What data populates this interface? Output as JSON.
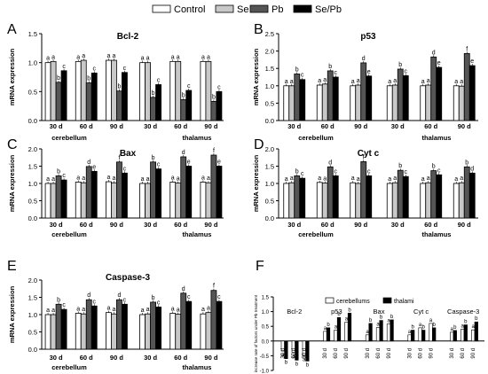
{
  "legend": [
    {
      "label": "Control",
      "color": "#ffffff"
    },
    {
      "label": "Se",
      "color": "#c8c8c8"
    },
    {
      "label": "Pb",
      "color": "#555555"
    },
    {
      "label": "Se/Pb",
      "color": "#000000"
    }
  ],
  "chart_data": [
    {
      "panel": "A",
      "type": "bar",
      "title": "Bcl-2",
      "ylabel": "mRNA expression",
      "ylim": [
        0,
        1.5
      ],
      "yticks": [
        "0.0",
        "0.5",
        "1.0",
        "1.5"
      ],
      "categories": [
        "30 d",
        "60 d",
        "90 d",
        "30 d",
        "60 d",
        "90 d"
      ],
      "groups": [
        "cerebellum",
        "thalamus"
      ],
      "series": [
        {
          "name": "Control",
          "values": [
            1.0,
            1.02,
            1.04,
            1.0,
            1.02,
            1.02
          ]
        },
        {
          "name": "Se",
          "values": [
            1.02,
            1.04,
            1.04,
            1.0,
            1.02,
            1.02
          ]
        },
        {
          "name": "Pb",
          "values": [
            0.66,
            0.65,
            0.51,
            0.4,
            0.36,
            0.33
          ]
        },
        {
          "name": "Se/Pb",
          "values": [
            0.86,
            0.82,
            0.83,
            0.62,
            0.52,
            0.5
          ]
        }
      ],
      "letters": [
        [
          "a",
          "a",
          "b",
          "c"
        ],
        [
          "a",
          "a",
          "b",
          "c"
        ],
        [
          "a",
          "a",
          "b",
          "c"
        ],
        [
          "a",
          "a",
          "b",
          "c"
        ],
        [
          "a",
          "a",
          "b",
          "c"
        ],
        [
          "a",
          "a",
          "b",
          "c"
        ]
      ]
    },
    {
      "panel": "B",
      "type": "bar",
      "title": "p53",
      "ylabel": "mRNA expression",
      "ylim": [
        0,
        2.5
      ],
      "yticks": [
        "0.0",
        "0.5",
        "1.0",
        "1.5",
        "2.0",
        "2.5"
      ],
      "categories": [
        "30 d",
        "60 d",
        "90 d",
        "30 d",
        "60 d",
        "90 d"
      ],
      "groups": [
        "cerebellum",
        "thalamus"
      ],
      "series": [
        {
          "name": "Control",
          "values": [
            1.0,
            1.02,
            1.0,
            1.0,
            1.0,
            1.0
          ]
        },
        {
          "name": "Se",
          "values": [
            1.0,
            1.05,
            1.02,
            1.02,
            1.02,
            0.99
          ]
        },
        {
          "name": "Pb",
          "values": [
            1.34,
            1.43,
            1.66,
            1.48,
            1.83,
            1.93
          ]
        },
        {
          "name": "Se/Pb",
          "values": [
            1.18,
            1.25,
            1.28,
            1.29,
            1.53,
            1.58
          ]
        }
      ],
      "letters": [
        [
          "a",
          "a",
          "b",
          "c"
        ],
        [
          "a",
          "a",
          "b",
          "c"
        ],
        [
          "a",
          "a",
          "d",
          "e"
        ],
        [
          "a",
          "a",
          "b",
          "c"
        ],
        [
          "a",
          "a",
          "d",
          "e"
        ],
        [
          "a",
          "a",
          "f",
          "e"
        ]
      ]
    },
    {
      "panel": "C",
      "type": "bar",
      "title": "Bax",
      "ylabel": "mRNA expression",
      "ylim": [
        0,
        2.0
      ],
      "yticks": [
        "0.0",
        "0.5",
        "1.0",
        "1.5",
        "2.0"
      ],
      "categories": [
        "30 d",
        "60 d",
        "90 d",
        "30 d",
        "60 d",
        "90 d"
      ],
      "groups": [
        "cerebellum",
        "thalamus"
      ],
      "series": [
        {
          "name": "Control",
          "values": [
            1.0,
            1.04,
            1.05,
            1.0,
            1.04,
            1.04
          ]
        },
        {
          "name": "Se",
          "values": [
            1.0,
            1.02,
            1.02,
            1.0,
            1.01,
            1.02
          ]
        },
        {
          "name": "Pb",
          "values": [
            1.22,
            1.49,
            1.62,
            1.62,
            1.77,
            1.82
          ]
        },
        {
          "name": "Se/Pb",
          "values": [
            1.1,
            1.35,
            1.3,
            1.42,
            1.5,
            1.5
          ]
        }
      ],
      "letters": [
        [
          "a",
          "a",
          "b",
          "c"
        ],
        [
          "a",
          "a",
          "d",
          "e"
        ],
        [
          "a",
          "a",
          "f",
          "c"
        ],
        [
          "a",
          "a",
          "b",
          "c"
        ],
        [
          "a",
          "a",
          "d",
          "e"
        ],
        [
          "a",
          "a",
          "f",
          "e"
        ]
      ]
    },
    {
      "panel": "D",
      "type": "bar",
      "title": "Cyt c",
      "ylabel": "mRNA expression",
      "ylim": [
        0,
        2.0
      ],
      "yticks": [
        "0.0",
        "0.5",
        "1.0",
        "1.5",
        "2.0"
      ],
      "categories": [
        "30 d",
        "60 d",
        "90 d",
        "30 d",
        "60 d",
        "90 d"
      ],
      "groups": [
        "cerebellum",
        "thalamus"
      ],
      "series": [
        {
          "name": "Control",
          "values": [
            1.0,
            1.03,
            1.02,
            1.0,
            1.0,
            1.0
          ]
        },
        {
          "name": "Se",
          "values": [
            1.02,
            1.01,
            1.0,
            1.02,
            1.02,
            1.02
          ]
        },
        {
          "name": "Pb",
          "values": [
            1.22,
            1.48,
            1.63,
            1.38,
            1.37,
            1.48
          ]
        },
        {
          "name": "Se/Pb",
          "values": [
            1.15,
            1.22,
            1.22,
            1.2,
            1.25,
            1.3
          ]
        }
      ],
      "letters": [
        [
          "a",
          "a",
          "b",
          "c"
        ],
        [
          "a",
          "a",
          "d",
          "c"
        ],
        [
          "a",
          "a",
          "f",
          "c"
        ],
        [
          "a",
          "a",
          "b",
          "c"
        ],
        [
          "a",
          "a",
          "b",
          "c"
        ],
        [
          "a",
          "a",
          "b",
          "d"
        ]
      ]
    },
    {
      "panel": "E",
      "type": "bar",
      "title": "Caspase-3",
      "ylabel": "mRNA expression",
      "ylim": [
        0,
        2.0
      ],
      "yticks": [
        "0.0",
        "0.5",
        "1.0",
        "1.5",
        "2.0"
      ],
      "categories": [
        "30 d",
        "60 d",
        "90 d",
        "30 d",
        "60 d",
        "90 d"
      ],
      "groups": [
        "cerebellum",
        "thalamus"
      ],
      "series": [
        {
          "name": "Control",
          "values": [
            1.0,
            1.04,
            1.06,
            1.0,
            1.04,
            1.02
          ]
        },
        {
          "name": "Se",
          "values": [
            1.0,
            1.02,
            1.02,
            1.02,
            1.01,
            1.06
          ]
        },
        {
          "name": "Pb",
          "values": [
            1.3,
            1.43,
            1.43,
            1.36,
            1.62,
            1.7
          ]
        },
        {
          "name": "Se/Pb",
          "values": [
            1.15,
            1.25,
            1.3,
            1.22,
            1.38,
            1.38
          ]
        }
      ],
      "letters": [
        [
          "a",
          "a",
          "b",
          "c"
        ],
        [
          "a",
          "a",
          "d",
          "c"
        ],
        [
          "a",
          "a",
          "d",
          "c"
        ],
        [
          "a",
          "a",
          "b",
          "c"
        ],
        [
          "a",
          "a",
          "d",
          "c"
        ],
        [
          "a",
          "a",
          "f",
          "c"
        ]
      ]
    },
    {
      "panel": "F",
      "type": "bar",
      "ylabel": "increase rate of factors under Pb treatment",
      "ylim": [
        -1.0,
        1.5
      ],
      "yticks": [
        "-1.0",
        "-0.5",
        "0.0",
        "0.5",
        "1.0",
        "1.5"
      ],
      "legend": [
        "cerebellums",
        "thalami"
      ],
      "factors": [
        "Bcl-2",
        "p53",
        "Bax",
        "Cyt c",
        "Caspase-3"
      ],
      "categories": [
        "30 d",
        "60 d",
        "90 d"
      ],
      "series": [
        {
          "name": "cerebellums",
          "values": [
            [
              -0.34,
              -0.38,
              -0.5
            ],
            [
              0.33,
              0.37,
              0.64
            ],
            [
              0.21,
              0.46,
              0.58
            ],
            [
              0.21,
              0.45,
              0.6
            ],
            [
              0.3,
              0.4,
              0.38
            ]
          ]
        },
        {
          "name": "thalami",
          "values": [
            [
              -0.6,
              -0.65,
              -0.68
            ],
            [
              0.45,
              0.8,
              0.95
            ],
            [
              0.6,
              0.7,
              0.72
            ],
            [
              0.37,
              0.37,
              0.45
            ],
            [
              0.36,
              0.55,
              0.65
            ]
          ]
        }
      ],
      "letters": [
        [
          [
            "a",
            "b"
          ],
          [
            "a",
            "b"
          ],
          [
            "a",
            "b"
          ]
        ],
        [
          [
            "a",
            "b"
          ],
          [
            "a",
            "b"
          ],
          [
            "a",
            "b"
          ]
        ],
        [
          [
            "a",
            "b"
          ],
          [
            "a",
            "b"
          ],
          [
            "a",
            "b"
          ]
        ],
        [
          [
            "a",
            "b"
          ],
          [
            "a",
            "b"
          ],
          [
            "a",
            "b"
          ]
        ],
        [
          [
            "a",
            "b"
          ],
          [
            "a",
            "b"
          ],
          [
            "a",
            "b"
          ]
        ]
      ]
    }
  ]
}
